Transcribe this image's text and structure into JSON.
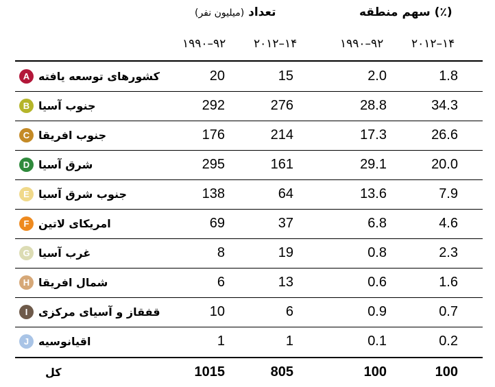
{
  "headers": {
    "count_title": "تعداد",
    "count_sub": "(میلیون نفر)",
    "share_title": "سهم منطقه (٪)",
    "year_a": "۲۰۱۲–۱۴",
    "year_b": "۱۹۹۰–۹۲"
  },
  "rows": [
    {
      "letter": "A",
      "color": "#b3173a",
      "name": "کشورهای توسعه یافته",
      "count_1990": "20",
      "count_2012": "15",
      "share_1990": "2.0",
      "share_2012": "1.8"
    },
    {
      "letter": "B",
      "color": "#b5b52a",
      "name": "جنوب آسیا",
      "count_1990": "292",
      "count_2012": "276",
      "share_1990": "28.8",
      "share_2012": "34.3"
    },
    {
      "letter": "C",
      "color": "#c48a26",
      "name": "جنوب افریقا",
      "count_1990": "176",
      "count_2012": "214",
      "share_1990": "17.3",
      "share_2012": "26.6"
    },
    {
      "letter": "D",
      "color": "#2f8a3c",
      "name": "شرق آسیا",
      "count_1990": "295",
      "count_2012": "161",
      "share_1990": "29.1",
      "share_2012": "20.0"
    },
    {
      "letter": "E",
      "color": "#f0d98a",
      "name": "جنوب شرق آسیا",
      "count_1990": "138",
      "count_2012": "64",
      "share_1990": "13.6",
      "share_2012": "7.9"
    },
    {
      "letter": "F",
      "color": "#ee8a1f",
      "name": "امریکای لاتین",
      "count_1990": "69",
      "count_2012": "37",
      "share_1990": "6.8",
      "share_2012": "4.6"
    },
    {
      "letter": "G",
      "color": "#dcdcb4",
      "name": "غرب آسیا",
      "count_1990": "8",
      "count_2012": "19",
      "share_1990": "0.8",
      "share_2012": "2.3"
    },
    {
      "letter": "H",
      "color": "#d6a878",
      "name": "شمال افریقا",
      "count_1990": "6",
      "count_2012": "13",
      "share_1990": "0.6",
      "share_2012": "1.6"
    },
    {
      "letter": "I",
      "color": "#6e5a4a",
      "name": "قفقاز و آسیای مرکزی",
      "count_1990": "10",
      "count_2012": "6",
      "share_1990": "0.9",
      "share_2012": "0.7"
    },
    {
      "letter": "J",
      "color": "#a9c4e6",
      "name": "اقیانوسیه",
      "count_1990": "1",
      "count_2012": "1",
      "share_1990": "0.1",
      "share_2012": "0.2"
    }
  ],
  "total": {
    "name": "کل",
    "count_1990": "1015",
    "count_2012": "805",
    "share_1990": "100",
    "share_2012": "100"
  }
}
